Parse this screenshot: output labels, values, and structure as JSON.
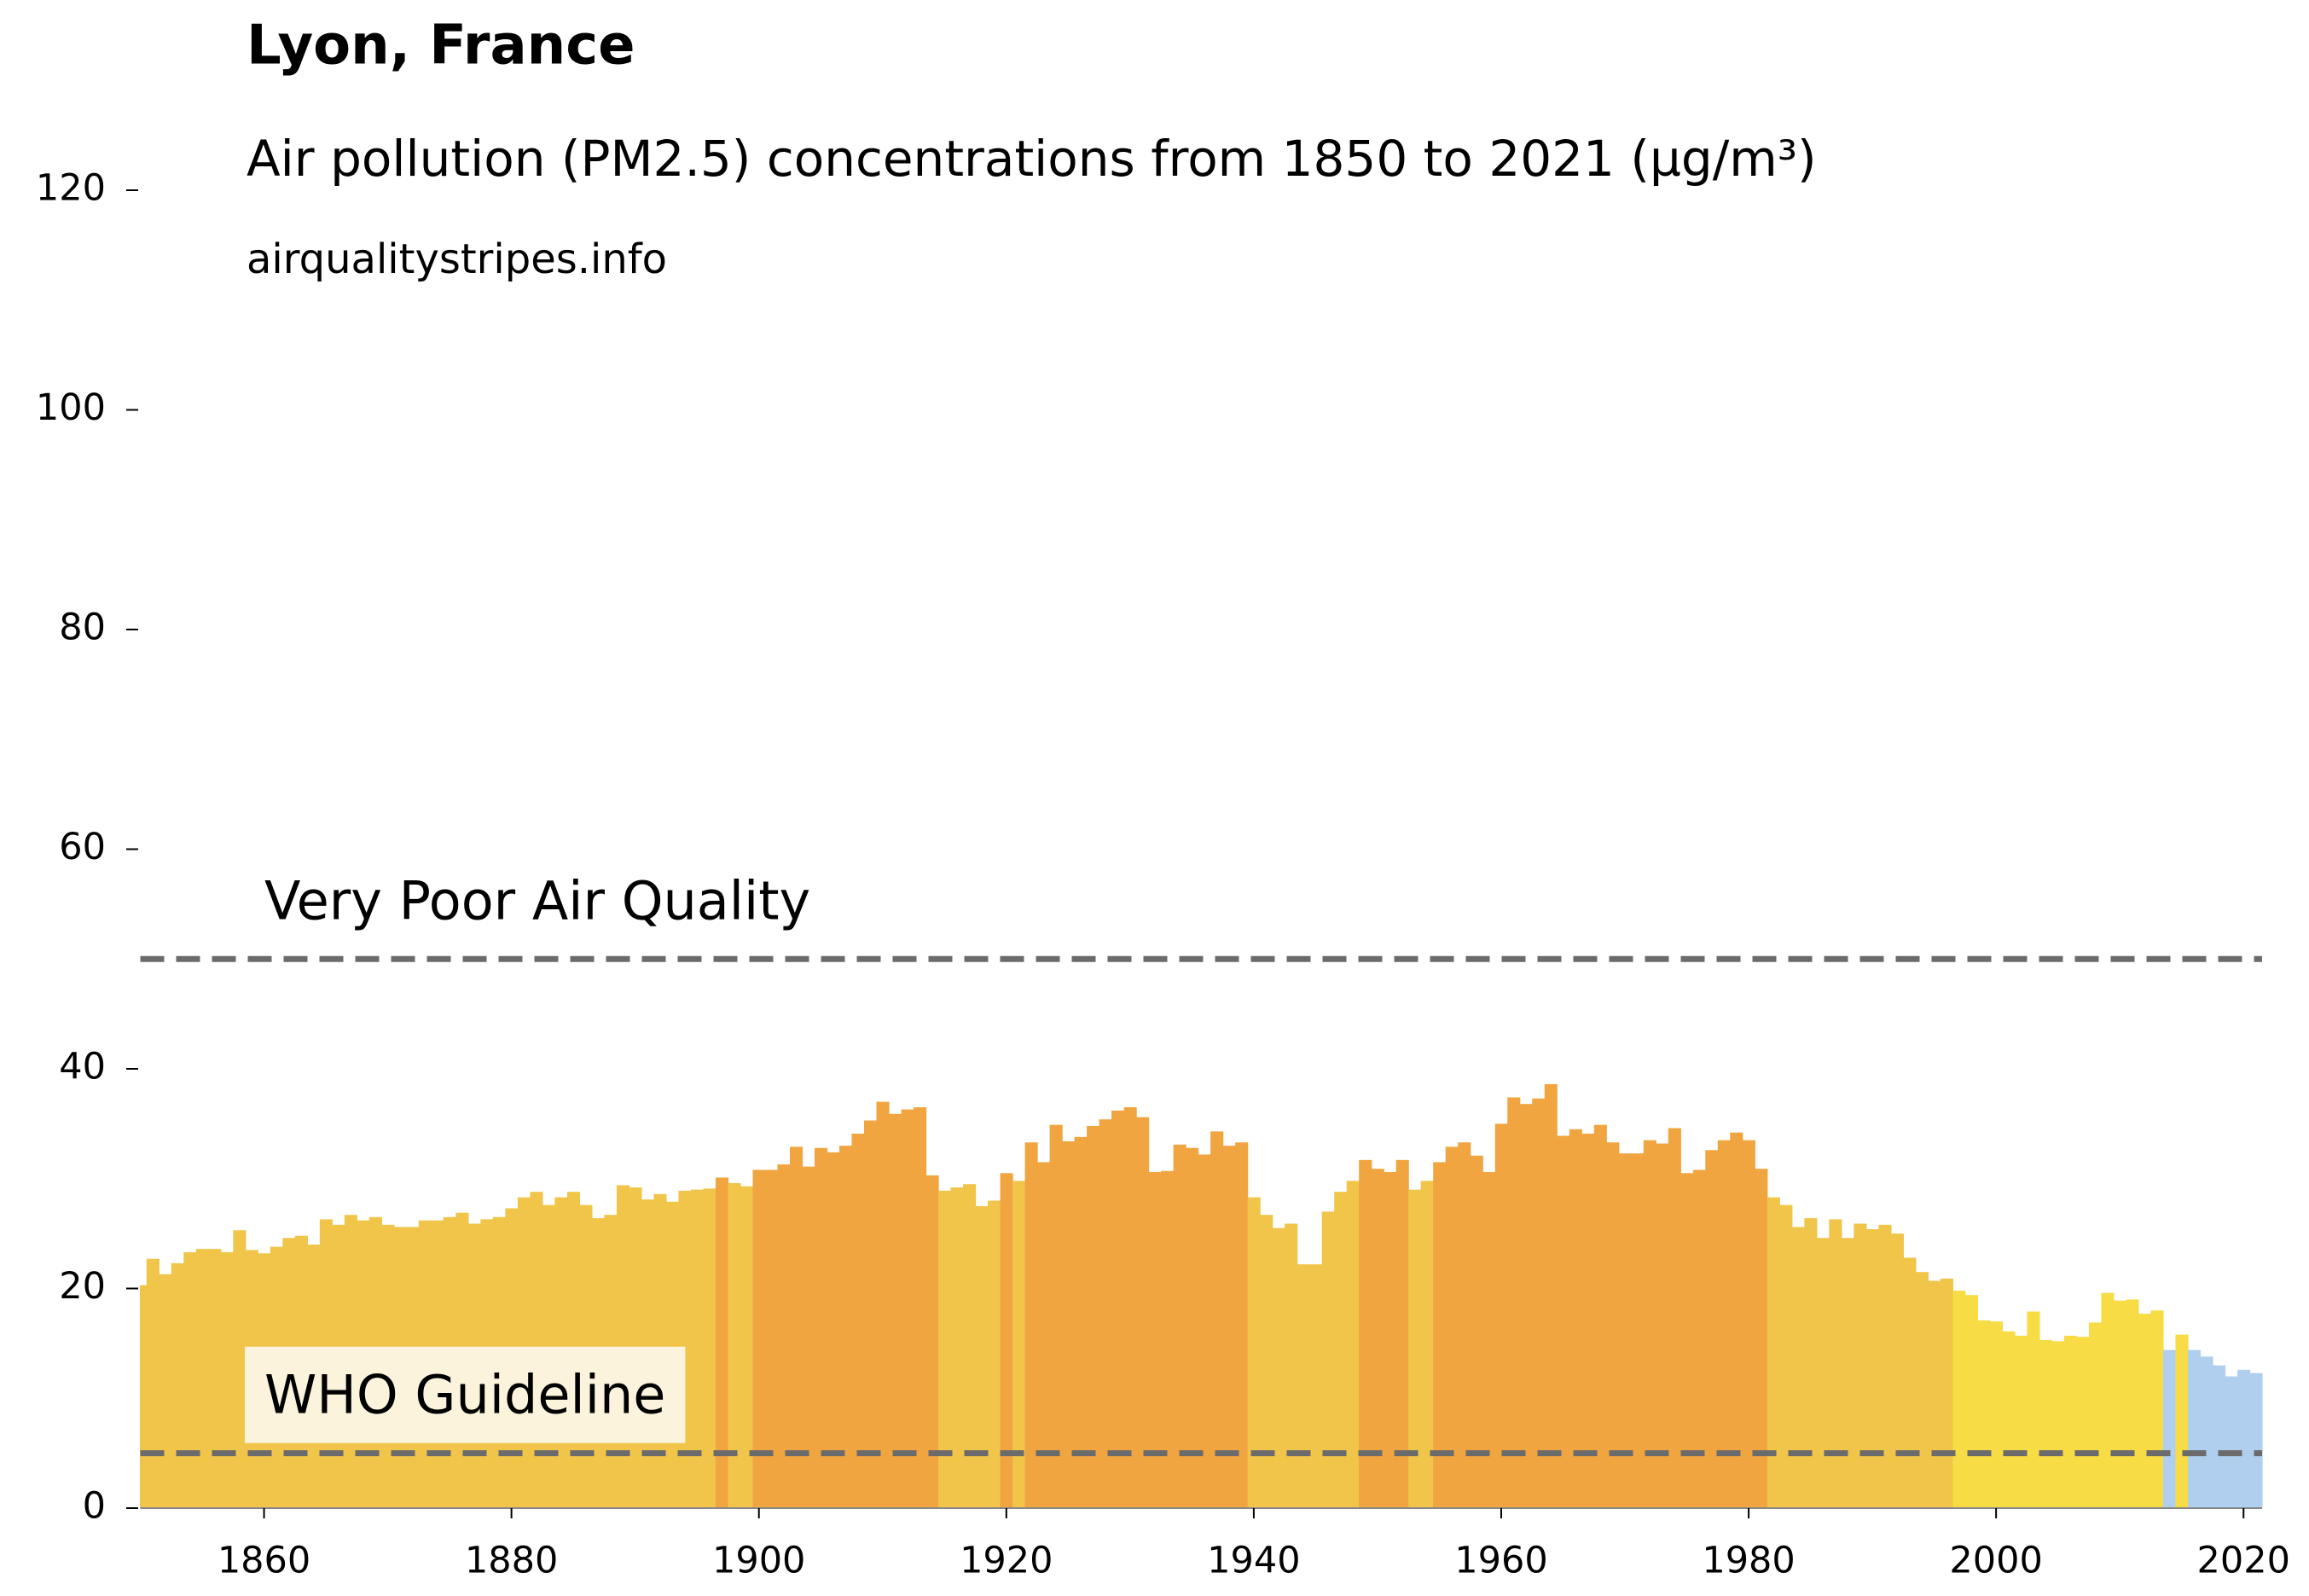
{
  "chart_data": {
    "type": "bar",
    "title": "Lyon, France",
    "subtitle": "Air pollution (PM2.5) concentrations from 1850 to 2021 (µg/m³)",
    "source": "airqualitystripes.info",
    "x": [
      1850,
      1851,
      1852,
      1853,
      1854,
      1855,
      1856,
      1857,
      1858,
      1859,
      1860,
      1861,
      1862,
      1863,
      1864,
      1865,
      1866,
      1867,
      1868,
      1869,
      1870,
      1871,
      1872,
      1873,
      1874,
      1875,
      1876,
      1877,
      1878,
      1879,
      1880,
      1881,
      1882,
      1883,
      1884,
      1885,
      1886,
      1887,
      1888,
      1889,
      1890,
      1891,
      1892,
      1893,
      1894,
      1895,
      1896,
      1897,
      1898,
      1899,
      1900,
      1901,
      1902,
      1903,
      1904,
      1905,
      1906,
      1907,
      1908,
      1909,
      1910,
      1911,
      1912,
      1913,
      1914,
      1915,
      1916,
      1917,
      1918,
      1919,
      1920,
      1921,
      1922,
      1923,
      1924,
      1925,
      1926,
      1927,
      1928,
      1929,
      1930,
      1931,
      1932,
      1933,
      1934,
      1935,
      1936,
      1937,
      1938,
      1939,
      1940,
      1941,
      1942,
      1943,
      1944,
      1945,
      1946,
      1947,
      1948,
      1949,
      1950,
      1951,
      1952,
      1953,
      1954,
      1955,
      1956,
      1957,
      1958,
      1959,
      1960,
      1961,
      1962,
      1963,
      1964,
      1965,
      1966,
      1967,
      1968,
      1969,
      1970,
      1971,
      1972,
      1973,
      1974,
      1975,
      1976,
      1977,
      1978,
      1979,
      1980,
      1981,
      1982,
      1983,
      1984,
      1985,
      1986,
      1987,
      1988,
      1989,
      1990,
      1991,
      1992,
      1993,
      1994,
      1995,
      1996,
      1997,
      1998,
      1999,
      2000,
      2001,
      2002,
      2003,
      2004,
      2005,
      2006,
      2007,
      2008,
      2009,
      2010,
      2011,
      2012,
      2013,
      2014,
      2015,
      2016,
      2017,
      2018,
      2019,
      2020,
      2021
    ],
    "values": [
      20.3,
      22.7,
      21.3,
      22.3,
      23.3,
      23.6,
      23.6,
      23.3,
      25.3,
      23.5,
      23.2,
      23.8,
      24.6,
      24.8,
      24.0,
      26.3,
      25.8,
      26.7,
      26.2,
      26.5,
      25.8,
      25.6,
      25.6,
      26.2,
      26.2,
      26.5,
      26.9,
      25.9,
      26.3,
      26.5,
      27.3,
      28.3,
      28.8,
      27.6,
      28.3,
      28.8,
      27.6,
      26.4,
      26.7,
      29.4,
      29.2,
      28.1,
      28.6,
      27.9,
      28.9,
      29.0,
      29.1,
      30.1,
      29.6,
      29.3,
      30.8,
      30.8,
      31.3,
      32.9,
      31.1,
      32.8,
      32.4,
      33.0,
      34.1,
      35.3,
      37.0,
      35.9,
      36.3,
      36.5,
      30.3,
      28.9,
      29.2,
      29.5,
      27.5,
      28.0,
      30.5,
      29.8,
      33.3,
      31.5,
      34.9,
      33.4,
      33.8,
      34.8,
      35.4,
      36.2,
      36.5,
      35.6,
      30.6,
      30.7,
      33.1,
      32.8,
      32.2,
      34.3,
      33.0,
      33.3,
      28.3,
      26.7,
      25.5,
      25.9,
      22.2,
      22.2,
      27.0,
      28.8,
      29.8,
      31.7,
      30.9,
      30.6,
      31.7,
      29.0,
      29.8,
      31.5,
      32.9,
      33.3,
      32.1,
      30.6,
      35.0,
      37.4,
      36.8,
      37.3,
      38.6,
      33.9,
      34.5,
      34.1,
      34.9,
      33.3,
      32.3,
      32.3,
      33.5,
      33.2,
      34.6,
      30.5,
      30.8,
      32.6,
      33.5,
      34.2,
      33.5,
      30.9,
      28.3,
      27.6,
      25.6,
      26.4,
      24.6,
      26.3,
      24.6,
      25.9,
      25.4,
      25.8,
      25.0,
      22.8,
      21.5,
      20.7,
      20.9,
      19.8,
      19.4,
      17.1,
      17.0,
      16.1,
      15.7,
      17.9,
      15.3,
      15.2,
      15.7,
      15.6,
      16.9,
      19.6,
      18.9,
      19.0,
      17.7,
      18.0,
      14.4,
      15.8,
      14.4,
      13.8,
      13.0,
      12.0,
      12.6,
      12.3
    ],
    "colors": [
      "#f0c54a",
      "#f0c54a",
      "#f0c54a",
      "#f0c54a",
      "#f0c54a",
      "#f0c54a",
      "#f0c54a",
      "#f0c54a",
      "#f0c54a",
      "#f0c54a",
      "#f0c54a",
      "#f0c54a",
      "#f0c54a",
      "#f0c54a",
      "#f0c54a",
      "#f0c54a",
      "#f0c54a",
      "#f0c54a",
      "#f0c54a",
      "#f0c54a",
      "#f0c54a",
      "#f0c54a",
      "#f0c54a",
      "#f0c54a",
      "#f0c54a",
      "#f0c54a",
      "#f0c54a",
      "#f0c54a",
      "#f0c54a",
      "#f0c54a",
      "#f0c54a",
      "#f0c54a",
      "#f0c54a",
      "#f0c54a",
      "#f0c54a",
      "#f0c54a",
      "#f0c54a",
      "#f0c54a",
      "#f0c54a",
      "#f0c54a",
      "#f0c54a",
      "#f0c54a",
      "#f0c54a",
      "#f0c54a",
      "#f0c54a",
      "#f0c54a",
      "#f0c54a",
      "#f0a540",
      "#f0c54a",
      "#f0c54a",
      "#f0a540",
      "#f0a540",
      "#f0a540",
      "#f0a540",
      "#f0a540",
      "#f0a540",
      "#f0a540",
      "#f0a540",
      "#f0a540",
      "#f0a540",
      "#f0a540",
      "#f0a540",
      "#f0a540",
      "#f0a540",
      "#f0a540",
      "#f0c54a",
      "#f0c54a",
      "#f0c54a",
      "#f0c54a",
      "#f0c54a",
      "#f0a540",
      "#f0c54a",
      "#f0a540",
      "#f0a540",
      "#f0a540",
      "#f0a540",
      "#f0a540",
      "#f0a540",
      "#f0a540",
      "#f0a540",
      "#f0a540",
      "#f0a540",
      "#f0a540",
      "#f0a540",
      "#f0a540",
      "#f0a540",
      "#f0a540",
      "#f0a540",
      "#f0a540",
      "#f0a540",
      "#f0c54a",
      "#f0c54a",
      "#f0c54a",
      "#f0c54a",
      "#f0c54a",
      "#f0c54a",
      "#f0c54a",
      "#f0c54a",
      "#f0c54a",
      "#f0a540",
      "#f0a540",
      "#f0a540",
      "#f0a540",
      "#f0c54a",
      "#f0c54a",
      "#f0a540",
      "#f0a540",
      "#f0a540",
      "#f0a540",
      "#f0a540",
      "#f0a540",
      "#f0a540",
      "#f0a540",
      "#f0a540",
      "#f0a540",
      "#f0a540",
      "#f0a540",
      "#f0a540",
      "#f0a540",
      "#f0a540",
      "#f0a540",
      "#f0a540",
      "#f0a540",
      "#f0a540",
      "#f0a540",
      "#f0a540",
      "#f0a540",
      "#f0a540",
      "#f0a540",
      "#f0a540",
      "#f0a540",
      "#f0a540",
      "#f0c54a",
      "#f0c54a",
      "#f0c54a",
      "#f0c54a",
      "#f0c54a",
      "#f0c54a",
      "#f0c54a",
      "#f0c54a",
      "#f0c54a",
      "#f0c54a",
      "#f0c54a",
      "#f0c54a",
      "#f0c54a",
      "#f0c54a",
      "#f0c54a",
      "#f7dc45",
      "#f7dc45",
      "#f7dc45",
      "#f7dc45",
      "#f7dc45",
      "#f7dc45",
      "#f7dc45",
      "#f7dc45",
      "#f7dc45",
      "#f7dc45",
      "#f7dc45",
      "#f7dc45",
      "#f7dc45",
      "#f7dc45",
      "#f7dc45",
      "#f7dc45",
      "#f7dc45",
      "#b0cfee",
      "#f7dc45",
      "#b0cfee",
      "#b0cfee",
      "#b0cfee",
      "#b0cfee",
      "#b0cfee",
      "#b0cfee"
    ],
    "reference_lines": [
      {
        "value": 5,
        "label": "WHO Guideline"
      },
      {
        "value": 50,
        "label": "Very Poor Air Quality"
      }
    ],
    "xlim": [
      1850,
      2021.5
    ],
    "ylim": [
      0,
      120
    ],
    "xticks": [
      1860,
      1880,
      1900,
      1920,
      1940,
      1960,
      1980,
      2000,
      2020
    ],
    "yticks": [
      0,
      20,
      40,
      60,
      80,
      100,
      120
    ]
  }
}
